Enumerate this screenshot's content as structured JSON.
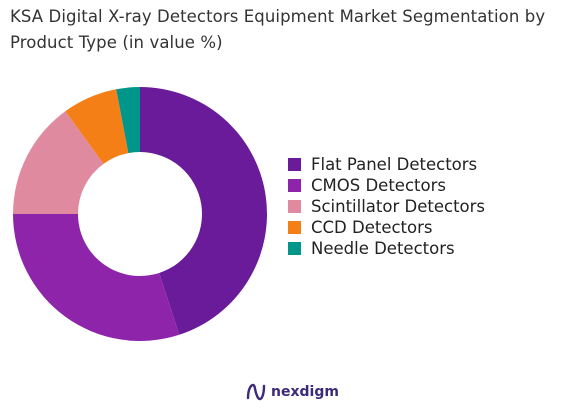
{
  "title": "KSA Digital X-ray Detectors Equipment Market Segmentation by Product Type (in value %)",
  "brand": {
    "name": "nexdigm"
  },
  "chart_data": {
    "type": "pie",
    "donut": true,
    "title": "KSA Digital X-ray Detectors Equipment Market Segmentation by Product Type (in value %)",
    "categories": [
      "Flat Panel Detectors",
      "CMOS Detectors",
      "Scintillator Detectors",
      "CCD Detectors",
      "Needle Detectors"
    ],
    "values": [
      45,
      30,
      15,
      7,
      3
    ],
    "colors": [
      "#6a1b9a",
      "#8e24aa",
      "#e08aa0",
      "#f57f17",
      "#00968a"
    ],
    "legend_position": "right"
  }
}
